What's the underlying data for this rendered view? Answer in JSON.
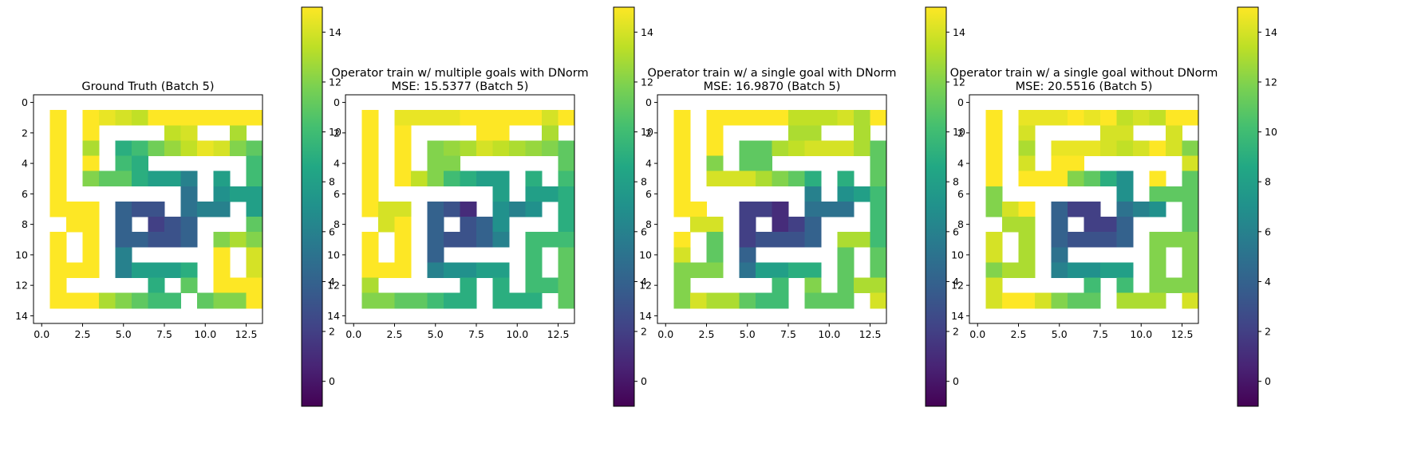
{
  "chart_data": [
    {
      "type": "heatmap",
      "title": "Ground Truth (Batch 5)",
      "subtitle": "",
      "rows": [
        [
          null,
          null,
          null,
          null,
          null,
          null,
          null,
          null,
          null,
          null,
          null,
          null,
          null,
          null
        ],
        [
          null,
          15,
          null,
          15,
          14.5,
          14,
          13.5,
          15,
          15,
          15,
          15,
          15,
          15,
          15
        ],
        [
          null,
          15,
          null,
          15,
          null,
          null,
          null,
          null,
          13.5,
          14,
          null,
          null,
          13,
          null
        ],
        [
          null,
          15,
          null,
          13,
          null,
          9,
          10,
          11.5,
          12.5,
          13.5,
          14.5,
          14,
          12,
          11
        ],
        [
          null,
          15,
          null,
          15,
          null,
          10,
          9,
          null,
          null,
          null,
          null,
          null,
          null,
          10
        ],
        [
          null,
          15,
          null,
          12,
          11,
          11,
          9,
          8,
          8,
          6,
          null,
          8,
          null,
          10
        ],
        [
          null,
          15,
          null,
          null,
          null,
          null,
          null,
          null,
          null,
          5,
          null,
          7,
          8,
          8
        ],
        [
          null,
          15,
          15,
          15,
          null,
          4,
          3,
          3,
          null,
          5,
          6,
          6,
          null,
          8
        ],
        [
          null,
          null,
          15,
          15,
          null,
          4,
          null,
          2,
          3,
          4,
          null,
          null,
          null,
          11
        ],
        [
          null,
          15,
          null,
          15,
          null,
          4,
          4,
          3,
          3,
          4,
          null,
          12,
          13,
          12
        ],
        [
          null,
          15,
          null,
          15,
          null,
          6,
          null,
          null,
          null,
          null,
          null,
          15,
          null,
          14
        ],
        [
          null,
          15,
          15,
          15,
          null,
          6,
          8,
          8,
          8,
          9,
          null,
          15,
          null,
          14
        ],
        [
          null,
          15,
          null,
          null,
          null,
          null,
          null,
          9,
          null,
          11,
          null,
          15,
          15,
          15
        ],
        [
          null,
          15,
          15,
          15,
          13,
          12,
          11,
          10,
          10,
          null,
          11,
          12,
          12,
          15
        ],
        [
          null,
          null,
          null,
          null,
          null,
          null,
          null,
          null,
          null,
          null,
          null,
          null,
          null,
          null
        ]
      ],
      "x_ticks": [
        "0.0",
        "2.5",
        "5.0",
        "7.5",
        "10.0",
        "12.5"
      ],
      "y_ticks": [
        "0",
        "2",
        "4",
        "6",
        "8",
        "10",
        "12",
        "14"
      ],
      "colorbar": {
        "min": -1,
        "max": 15,
        "ticks": [
          "0",
          "2",
          "4",
          "6",
          "8",
          "10",
          "12",
          "14"
        ],
        "colormap": "viridis"
      }
    },
    {
      "type": "heatmap",
      "title": "Operator train w/ multiple goals with DNorm",
      "subtitle": "MSE: 15.5377 (Batch 5)",
      "rows": [
        [
          null,
          null,
          null,
          null,
          null,
          null,
          null,
          null,
          null,
          null,
          null,
          null,
          null,
          null
        ],
        [
          null,
          15,
          null,
          14.5,
          14.5,
          14.5,
          14.5,
          15,
          15,
          15,
          15,
          15,
          14,
          15
        ],
        [
          null,
          15,
          null,
          15,
          null,
          null,
          null,
          null,
          15,
          15,
          null,
          null,
          13,
          null
        ],
        [
          null,
          15,
          null,
          15,
          null,
          12,
          12.5,
          13,
          14,
          13.5,
          13,
          12.5,
          12,
          11
        ],
        [
          null,
          15,
          null,
          15,
          null,
          12,
          12,
          null,
          null,
          null,
          null,
          null,
          null,
          11
        ],
        [
          null,
          15,
          null,
          15,
          13.5,
          12,
          10,
          9,
          8,
          8,
          null,
          9,
          null,
          10
        ],
        [
          null,
          15,
          null,
          null,
          null,
          null,
          null,
          null,
          null,
          8,
          null,
          8,
          8,
          9
        ],
        [
          null,
          15,
          14,
          14,
          null,
          4,
          3,
          1,
          null,
          7,
          6,
          7,
          null,
          9
        ],
        [
          null,
          null,
          14,
          15,
          null,
          4,
          null,
          3,
          4,
          7,
          null,
          null,
          null,
          9
        ],
        [
          null,
          15,
          null,
          15,
          null,
          4,
          3,
          3,
          4,
          6,
          null,
          10,
          10,
          10
        ],
        [
          null,
          15,
          null,
          15,
          null,
          4,
          null,
          null,
          null,
          null,
          null,
          10,
          null,
          11
        ],
        [
          null,
          15,
          15,
          15,
          null,
          6,
          7,
          7,
          8,
          8,
          null,
          10,
          null,
          11
        ],
        [
          null,
          13,
          null,
          null,
          null,
          null,
          null,
          9,
          null,
          9,
          null,
          10,
          10,
          11
        ],
        [
          null,
          12,
          12,
          11,
          11,
          10,
          9,
          9,
          null,
          9,
          9,
          9,
          null,
          11
        ],
        [
          null,
          null,
          null,
          null,
          null,
          null,
          null,
          null,
          null,
          null,
          null,
          null,
          null,
          null
        ]
      ],
      "x_ticks": [
        "0.0",
        "2.5",
        "5.0",
        "7.5",
        "10.0",
        "12.5"
      ],
      "y_ticks": [
        "0",
        "2",
        "4",
        "6",
        "8",
        "10",
        "12",
        "14"
      ],
      "colorbar": {
        "min": -1,
        "max": 15,
        "ticks": [
          "0",
          "2",
          "4",
          "6",
          "8",
          "10",
          "12",
          "14"
        ],
        "colormap": "viridis"
      }
    },
    {
      "type": "heatmap",
      "title": "Operator train w/ a single goal with DNorm",
      "subtitle": "MSE: 16.9870 (Batch 5)",
      "rows": [
        [
          null,
          null,
          null,
          null,
          null,
          null,
          null,
          null,
          null,
          null,
          null,
          null,
          null,
          null
        ],
        [
          null,
          15,
          null,
          15,
          15,
          15,
          15,
          15,
          13.5,
          13.5,
          13.5,
          14,
          13,
          15
        ],
        [
          null,
          15,
          null,
          15,
          null,
          null,
          null,
          null,
          13,
          13,
          null,
          null,
          13,
          null
        ],
        [
          null,
          15,
          null,
          15,
          null,
          11,
          11,
          13,
          13.5,
          14,
          14,
          14,
          13,
          11
        ],
        [
          null,
          15,
          null,
          12,
          null,
          11,
          11,
          null,
          null,
          null,
          null,
          null,
          null,
          11
        ],
        [
          null,
          15,
          null,
          14,
          14,
          14,
          13,
          12,
          11,
          9,
          null,
          9,
          null,
          11
        ],
        [
          null,
          15,
          null,
          null,
          null,
          null,
          null,
          null,
          null,
          6,
          null,
          7,
          8,
          10
        ],
        [
          null,
          15,
          15,
          null,
          null,
          2,
          2,
          1,
          null,
          5,
          5,
          5,
          null,
          10
        ],
        [
          null,
          null,
          14,
          14,
          null,
          2,
          null,
          1,
          2,
          4,
          null,
          null,
          null,
          10
        ],
        [
          null,
          15,
          null,
          11,
          null,
          2,
          3,
          3,
          3,
          4,
          null,
          13,
          13,
          10
        ],
        [
          null,
          14,
          null,
          11,
          null,
          4,
          null,
          null,
          null,
          null,
          null,
          11,
          null,
          11
        ],
        [
          null,
          12,
          12,
          12,
          null,
          5,
          8,
          8,
          9,
          9,
          null,
          11,
          null,
          11
        ],
        [
          null,
          12,
          null,
          null,
          null,
          null,
          null,
          10,
          null,
          12,
          null,
          11,
          13,
          13
        ],
        [
          null,
          12,
          14,
          13,
          13,
          11,
          10,
          10,
          null,
          11,
          11,
          11,
          null,
          14
        ],
        [
          null,
          null,
          null,
          null,
          null,
          null,
          null,
          null,
          null,
          null,
          null,
          null,
          null,
          null
        ]
      ],
      "x_ticks": [
        "0.0",
        "2.5",
        "5.0",
        "7.5",
        "10.0",
        "12.5"
      ],
      "y_ticks": [
        "0",
        "2",
        "4",
        "6",
        "8",
        "10",
        "12",
        "14"
      ],
      "colorbar": {
        "min": -1,
        "max": 15,
        "ticks": [
          "0",
          "2",
          "4",
          "6",
          "8",
          "10",
          "12",
          "14"
        ],
        "colormap": "viridis"
      }
    },
    {
      "type": "heatmap",
      "title": "Operator train w/ a single goal without DNorm",
      "subtitle": "MSE: 20.5516 (Batch 5)",
      "rows": [
        [
          null,
          null,
          null,
          null,
          null,
          null,
          null,
          null,
          null,
          null,
          null,
          null,
          null,
          null
        ],
        [
          null,
          15,
          null,
          14.5,
          14.5,
          14.5,
          15,
          14.5,
          15,
          13.5,
          14,
          13.5,
          15,
          15
        ],
        [
          null,
          15,
          null,
          14,
          null,
          null,
          null,
          null,
          14,
          14,
          null,
          null,
          14,
          null
        ],
        [
          null,
          15,
          null,
          13,
          null,
          14.5,
          14.5,
          14.5,
          14,
          13.5,
          14,
          15,
          14,
          12
        ],
        [
          null,
          15,
          null,
          14,
          null,
          15,
          15,
          null,
          null,
          null,
          null,
          null,
          null,
          14
        ],
        [
          null,
          15,
          null,
          15,
          15,
          15,
          12,
          11,
          9,
          7,
          null,
          15,
          null,
          11
        ],
        [
          null,
          12,
          null,
          null,
          null,
          null,
          null,
          null,
          null,
          7,
          null,
          11,
          11,
          11
        ],
        [
          null,
          12,
          14,
          15,
          null,
          4,
          2,
          2,
          null,
          5,
          6,
          7,
          null,
          11
        ],
        [
          null,
          null,
          13,
          13,
          null,
          4,
          null,
          2,
          2,
          4,
          null,
          null,
          null,
          11
        ],
        [
          null,
          14,
          null,
          13,
          null,
          4,
          3,
          3,
          3,
          4,
          null,
          12,
          12,
          12
        ],
        [
          null,
          14,
          null,
          13,
          null,
          5,
          null,
          null,
          null,
          null,
          null,
          12,
          null,
          12
        ],
        [
          null,
          12,
          13,
          13,
          null,
          6,
          7,
          7,
          8,
          8,
          null,
          12,
          null,
          12
        ],
        [
          null,
          14,
          null,
          null,
          null,
          null,
          null,
          10,
          null,
          10,
          null,
          12,
          12,
          12
        ],
        [
          null,
          14,
          15,
          15,
          14,
          12,
          11,
          11,
          null,
          13,
          13,
          13,
          null,
          14
        ],
        [
          null,
          null,
          null,
          null,
          null,
          null,
          null,
          null,
          null,
          null,
          null,
          null,
          null,
          null
        ]
      ],
      "x_ticks": [
        "0.0",
        "2.5",
        "5.0",
        "7.5",
        "10.0",
        "12.5"
      ],
      "y_ticks": [
        "0",
        "2",
        "4",
        "6",
        "8",
        "10",
        "12",
        "14"
      ],
      "colorbar": {
        "min": -1,
        "max": 15,
        "ticks": [
          "0",
          "2",
          "4",
          "6",
          "8",
          "10",
          "12",
          "14"
        ],
        "colormap": "viridis"
      }
    }
  ]
}
